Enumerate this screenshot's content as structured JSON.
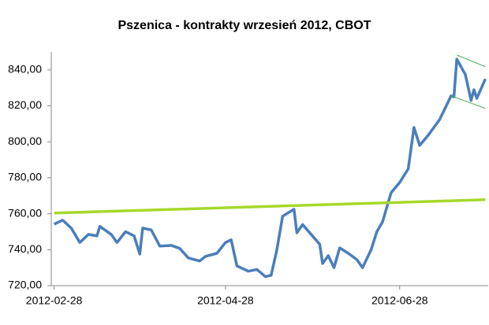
{
  "chart_data": {
    "type": "line",
    "title": "Pszenica - kontrakty wrzesień 2012, CBOT",
    "series": [
      {
        "color": "#4a7ebb",
        "width": 3.5,
        "x": [
          "2012-02-28",
          "2012-03-02",
          "2012-03-05",
          "2012-03-08",
          "2012-03-11",
          "2012-03-14",
          "2012-03-15",
          "2012-03-19",
          "2012-03-21",
          "2012-03-24",
          "2012-03-27",
          "2012-03-29",
          "2012-03-30",
          "2012-04-02",
          "2012-04-05",
          "2012-04-09",
          "2012-04-12",
          "2012-04-15",
          "2012-04-19",
          "2012-04-21",
          "2012-04-25",
          "2012-04-28",
          "2012-04-30",
          "2012-05-02",
          "2012-05-06",
          "2012-05-09",
          "2012-05-12",
          "2012-05-14",
          "2012-05-16",
          "2012-05-18",
          "2012-05-22",
          "2012-05-23",
          "2012-05-25",
          "2012-05-31",
          "2012-06-01",
          "2012-06-03",
          "2012-06-05",
          "2012-06-07",
          "2012-06-10",
          "2012-06-13",
          "2012-06-15",
          "2012-06-18",
          "2012-06-20",
          "2012-06-22",
          "2012-06-25",
          "2012-06-28",
          "2012-07-01",
          "2012-07-03",
          "2012-07-05",
          "2012-07-08",
          "2012-07-12",
          "2012-07-16",
          "2012-07-17",
          "2012-07-18",
          "2012-07-21",
          "2012-07-23",
          "2012-07-24",
          "2012-07-25",
          "2012-07-28"
        ],
        "values": [
          754.2,
          756.4,
          752,
          744,
          748.5,
          747.7,
          753,
          748.5,
          744,
          750,
          747.7,
          737.6,
          752,
          751,
          742,
          742.4,
          740.7,
          735.4,
          733.7,
          736.3,
          738,
          744,
          745.5,
          731,
          728,
          729,
          725,
          725.8,
          740,
          758.6,
          762.5,
          749.4,
          754,
          743,
          732.3,
          736.7,
          730,
          741,
          738,
          734.5,
          730,
          740,
          750,
          755.5,
          771.7,
          777.4,
          785,
          808,
          798,
          803.7,
          812.4,
          825.6,
          825,
          846,
          837.4,
          823,
          829,
          824.2,
          835
        ]
      },
      {
        "color": "#a6d82a",
        "width": 3.5,
        "x": [
          "2012-02-28",
          "2012-07-28"
        ],
        "values": [
          760.4,
          767.8
        ]
      },
      {
        "color": "#4caf50",
        "width": 1,
        "x": [
          "2012-07-18",
          "2012-07-28"
        ],
        "values": [
          848.3,
          841.8
        ]
      },
      {
        "color": "#4caf50",
        "width": 1,
        "x": [
          "2012-07-16",
          "2012-07-28"
        ],
        "values": [
          825.6,
          818.6
        ]
      }
    ],
    "xlim": [
      "2012-02-27",
      "2012-07-29"
    ],
    "xticks": [
      "2012-02-28",
      "2012-04-28",
      "2012-06-28"
    ],
    "ylim": [
      720,
      850
    ],
    "yticks": [
      {
        "value": 720,
        "label": "720,00"
      },
      {
        "value": 740,
        "label": "740,00"
      },
      {
        "value": 760,
        "label": "760,00"
      },
      {
        "value": 780,
        "label": "780,00"
      },
      {
        "value": 800,
        "label": "800,00"
      },
      {
        "value": 820,
        "label": "820,00"
      },
      {
        "value": 840,
        "label": "840,00"
      }
    ],
    "grid": false
  }
}
